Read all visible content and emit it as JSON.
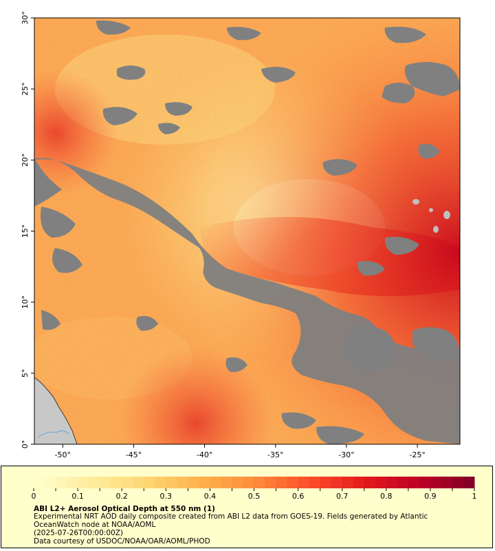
{
  "map": {
    "extent": {
      "lon_min": -52,
      "lon_max": -22,
      "lat_min": 0,
      "lat_max": 30
    },
    "lon_ticks": [
      -50,
      -45,
      -40,
      -35,
      -30,
      -25
    ],
    "lat_ticks": [
      0,
      5,
      10,
      15,
      20,
      25,
      30
    ],
    "lon_labels": [
      "-50°",
      "-45°",
      "-40°",
      "-35°",
      "-30°",
      "-25°"
    ],
    "lat_labels": [
      "0°",
      "5°",
      "10°",
      "15°",
      "20°",
      "25°",
      "30°"
    ],
    "colors": {
      "cloud_gray": "#808080",
      "land": "#c8c8c8",
      "water_line": "#6aa6d6"
    }
  },
  "colorbar": {
    "min": 0,
    "max": 1,
    "tick_values": [
      0,
      0.1,
      0.2,
      0.3,
      0.4,
      0.5,
      0.6,
      0.7,
      0.8,
      0.9,
      1
    ],
    "tick_labels": [
      "0",
      "0.1",
      "0.2",
      "0.3",
      "0.4",
      "0.5",
      "0.6",
      "0.7",
      "0.8",
      "0.9",
      "1"
    ],
    "colors": [
      "#ffffcc",
      "#ffeda0",
      "#fed976",
      "#feb24c",
      "#fd8d3c",
      "#fc4e2a",
      "#e31a1c",
      "#bd0026",
      "#800026"
    ]
  },
  "caption": {
    "title": "ABI L2+ Aerosol Optical Depth at 550 nm (1)",
    "description_line1": "Experimental NRT AOD daily composite created from ABI L2 data from GOES-19. Fields generated by Atlantic",
    "description_line2": "OceanWatch node at NOAA/AOML",
    "date": "(2025-07-26T00:00:00Z)",
    "credit": "Data courtesy of USDOC/NOAA/OAR/AOML/PHOD"
  }
}
